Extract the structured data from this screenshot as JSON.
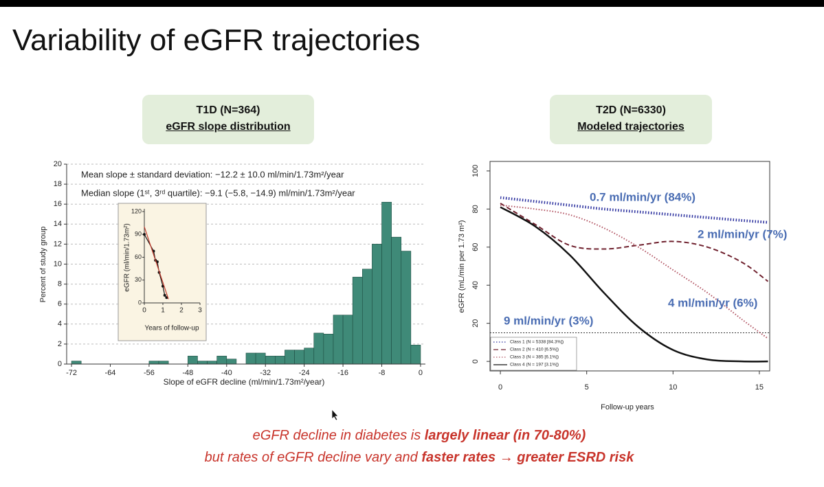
{
  "title": "Variability of eGFR trajectories",
  "chart_data": [
    {
      "type": "histogram",
      "title": "T1D (N=364)",
      "subtitle": "eGFR slope distribution",
      "bins": [
        -72,
        -70,
        -68,
        -66,
        -64,
        -62,
        -60,
        -58,
        -56,
        -54,
        -52,
        -50,
        -48,
        -46,
        -44,
        -42,
        -40,
        -38,
        -36,
        -34,
        -32,
        -30,
        -28,
        -26,
        -24,
        -22,
        -20,
        -18,
        -16,
        -14,
        -12,
        -10,
        -8,
        -6,
        -4,
        -2,
        0
      ],
      "values": [
        0.3,
        0,
        0,
        0,
        0,
        0,
        0,
        0,
        0.3,
        0.3,
        0,
        0,
        0.8,
        0.3,
        0.3,
        0.8,
        0.5,
        0,
        1.1,
        1.1,
        0.8,
        0.8,
        1.4,
        1.4,
        1.6,
        3.1,
        3.0,
        4.9,
        4.9,
        8.7,
        9.5,
        12,
        16.2,
        12.7,
        11.3,
        1.9
      ],
      "color": "#3f8a78",
      "xlim": [
        -73,
        1
      ],
      "ylim": [
        0,
        20
      ],
      "xticks": [
        -72,
        -64,
        -56,
        -48,
        -40,
        -32,
        -24,
        -16,
        -8,
        0
      ],
      "yticks": [
        0,
        2,
        4,
        6,
        8,
        10,
        12,
        14,
        16,
        18,
        20
      ],
      "grid": true,
      "xlabel": "Slope of eGFR decline (ml/min/1.73m²/year)",
      "ylabel": "Percent of study group",
      "annotations": [
        "Mean slope ± standard deviation: −12.2 ± 10.0 ml/min/1.73m²/year",
        "Median slope (1ˢᵗ, 3ʳᵈ quartile): −9.1 (−5.8, −14.9) ml/min/1.73m²/year"
      ]
    },
    {
      "type": "scatter",
      "series": [
        {
          "color": "#111111",
          "x": [
            0,
            0.5,
            0.6,
            0.7,
            0.8,
            1.0,
            1.1,
            1.2
          ],
          "values": [
            90,
            68,
            56,
            54,
            40,
            22,
            10,
            7
          ],
          "markers": true,
          "line": true
        },
        {
          "color": "#c0392b",
          "x": [
            0,
            1.3
          ],
          "values": [
            100,
            5
          ],
          "markers": false,
          "line": true
        }
      ],
      "xlim": [
        0,
        3
      ],
      "ylim": [
        0,
        120
      ],
      "xticks": [
        0,
        1,
        2,
        3
      ],
      "yticks": [
        0,
        30,
        60,
        90,
        120
      ],
      "xlabel": "Years of follow-up",
      "ylabel": "eGFR (ml/min/1.73m²)"
    },
    {
      "type": "line",
      "title": "T2D (N=6330)",
      "subtitle": "Modeled trajectories",
      "x": [
        0,
        2,
        4,
        6,
        8,
        10,
        12,
        14,
        15.5
      ],
      "series": [
        {
          "name": "Class 1 (N = 5338 [84.3%])",
          "color": "#2a2f9e",
          "dash": "dotted",
          "width": 4,
          "values": [
            86,
            84,
            82,
            80,
            78.5,
            77,
            75.5,
            74,
            73
          ]
        },
        {
          "name": "Class 2 (N = 410 [6.5%])",
          "color": "#6e1f2c",
          "dash": "dashed",
          "width": 2,
          "values": [
            83,
            72,
            61,
            59,
            61,
            63,
            60,
            52,
            42
          ]
        },
        {
          "name": "Class 3 (N = 385 [6.1%])",
          "color": "#b0505f",
          "dash": "dotted",
          "width": 2,
          "values": [
            82,
            80,
            77,
            70,
            60,
            48,
            36,
            22,
            12
          ]
        },
        {
          "name": "Class 4 (N = 197 [3.1%])",
          "color": "#111111",
          "dash": "solid",
          "width": 2.5,
          "values": [
            81,
            71,
            56,
            36,
            18,
            6,
            1,
            0,
            0
          ]
        }
      ],
      "xlim": [
        -0.6,
        15.6
      ],
      "ylim": [
        -5,
        105
      ],
      "xticks": [
        0,
        5,
        10,
        15
      ],
      "yticks": [
        0,
        20,
        40,
        60,
        80,
        100
      ],
      "hline": 15,
      "legend": "lower left",
      "xlabel": "Follow-up years",
      "ylabel": "eGFR (mL/min per 1.73 m²)",
      "annotation_color": "#4a6db3",
      "annotations": [
        "0.7 ml/min/yr (84%)",
        "2 ml/min/yr (7%)",
        "4 ml/min/yr (6%)",
        "9 ml/min/yr (3%)"
      ]
    }
  ],
  "footer": {
    "lines": [
      [
        {
          "text": "eGFR decline in diabetes is ",
          "bold": false
        },
        {
          "text": "largely linear (in 70-80%)",
          "bold": true
        }
      ],
      [
        {
          "text": "but rates of eGFR decline vary and ",
          "bold": false
        },
        {
          "text": "faster rates → greater ESRD risk",
          "bold": true
        }
      ]
    ]
  }
}
